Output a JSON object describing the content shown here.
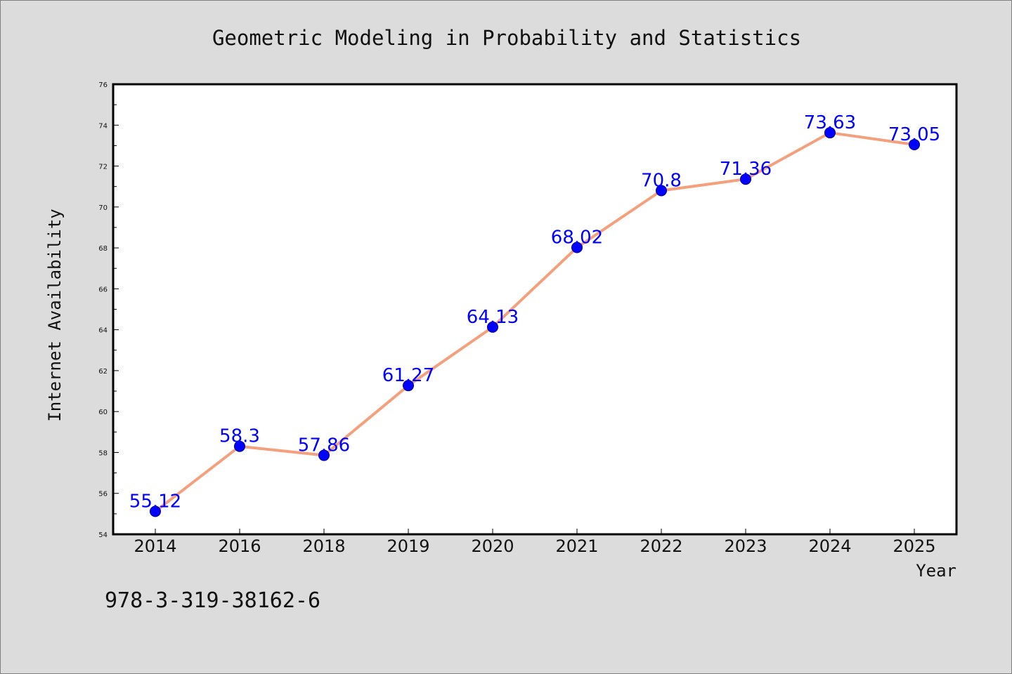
{
  "footnote": "978-3-319-38162-6",
  "chart_data": {
    "type": "line",
    "title": "Geometric Modeling in Probability and Statistics",
    "xlabel": "Year",
    "ylabel": "Internet Availability",
    "categories": [
      "2014",
      "2016",
      "2018",
      "2019",
      "2020",
      "2021",
      "2022",
      "2023",
      "2024",
      "2025"
    ],
    "series": [
      {
        "values": [
          55.12,
          58.3,
          57.86,
          61.27,
          64.13,
          68.02,
          70.8,
          71.36,
          73.63,
          73.05
        ],
        "labels": [
          "55.12",
          "58.3",
          "57.86",
          "61.27",
          "64.13",
          "68.02",
          "70.8",
          "71.36",
          "73.63",
          "73.05"
        ],
        "line_color": "#f4a07c",
        "marker_color": "#0000ff"
      }
    ],
    "ylim": [
      54,
      76
    ],
    "yticks": [
      "54",
      "56",
      "58",
      "60",
      "62",
      "64",
      "66",
      "68",
      "70",
      "72",
      "74",
      "76"
    ],
    "grid": false,
    "legend": "none",
    "colors": {
      "figure_background": "#dcdcdc",
      "plot_background": "#ffffff",
      "data_label": "#0000ff"
    }
  }
}
